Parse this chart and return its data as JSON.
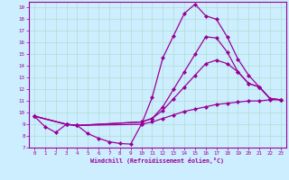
{
  "background_color": "#cceeff",
  "grid_color": "#b0ddd0",
  "line_color": "#990099",
  "xlabel": "Windchill (Refroidissement éolien,°C)",
  "xlim": [
    -0.5,
    23.5
  ],
  "ylim": [
    7,
    19.5
  ],
  "xticks": [
    0,
    1,
    2,
    3,
    4,
    5,
    6,
    7,
    8,
    9,
    10,
    11,
    12,
    13,
    14,
    15,
    16,
    17,
    18,
    19,
    20,
    21,
    22,
    23
  ],
  "yticks": [
    7,
    8,
    9,
    10,
    11,
    12,
    13,
    14,
    15,
    16,
    17,
    18,
    19
  ],
  "series1": [
    [
      0,
      9.7
    ],
    [
      1,
      8.8
    ],
    [
      2,
      8.3
    ],
    [
      3,
      9.0
    ],
    [
      4,
      8.9
    ],
    [
      5,
      8.2
    ],
    [
      6,
      7.8
    ],
    [
      7,
      7.5
    ],
    [
      8,
      7.35
    ],
    [
      9,
      7.3
    ],
    [
      10,
      9.0
    ],
    [
      11,
      11.3
    ],
    [
      12,
      14.7
    ],
    [
      13,
      16.6
    ],
    [
      14,
      18.5
    ],
    [
      15,
      19.3
    ],
    [
      16,
      18.3
    ],
    [
      17,
      18.0
    ],
    [
      18,
      16.5
    ],
    [
      19,
      14.6
    ],
    [
      20,
      13.2
    ],
    [
      21,
      12.2
    ],
    [
      22,
      11.2
    ],
    [
      23,
      11.1
    ]
  ],
  "series2": [
    [
      0,
      9.7
    ],
    [
      3,
      9.0
    ],
    [
      4,
      8.9
    ],
    [
      10,
      9.2
    ],
    [
      11,
      9.5
    ],
    [
      12,
      10.5
    ],
    [
      13,
      12.0
    ],
    [
      14,
      13.5
    ],
    [
      15,
      15.0
    ],
    [
      16,
      16.5
    ],
    [
      17,
      16.4
    ],
    [
      18,
      15.2
    ],
    [
      19,
      13.5
    ],
    [
      20,
      12.5
    ],
    [
      21,
      12.2
    ],
    [
      22,
      11.2
    ],
    [
      23,
      11.1
    ]
  ],
  "series3": [
    [
      0,
      9.7
    ],
    [
      3,
      9.0
    ],
    [
      4,
      8.9
    ],
    [
      10,
      9.2
    ],
    [
      11,
      9.5
    ],
    [
      12,
      10.2
    ],
    [
      13,
      11.2
    ],
    [
      14,
      12.2
    ],
    [
      15,
      13.2
    ],
    [
      16,
      14.2
    ],
    [
      17,
      14.5
    ],
    [
      18,
      14.2
    ],
    [
      19,
      13.5
    ],
    [
      20,
      12.5
    ],
    [
      21,
      12.2
    ],
    [
      22,
      11.2
    ],
    [
      23,
      11.1
    ]
  ],
  "series4": [
    [
      0,
      9.7
    ],
    [
      3,
      9.0
    ],
    [
      4,
      8.9
    ],
    [
      10,
      9.0
    ],
    [
      11,
      9.2
    ],
    [
      12,
      9.5
    ],
    [
      13,
      9.8
    ],
    [
      14,
      10.1
    ],
    [
      15,
      10.3
    ],
    [
      16,
      10.5
    ],
    [
      17,
      10.7
    ],
    [
      18,
      10.8
    ],
    [
      19,
      10.9
    ],
    [
      20,
      11.0
    ],
    [
      21,
      11.0
    ],
    [
      22,
      11.1
    ],
    [
      23,
      11.1
    ]
  ]
}
